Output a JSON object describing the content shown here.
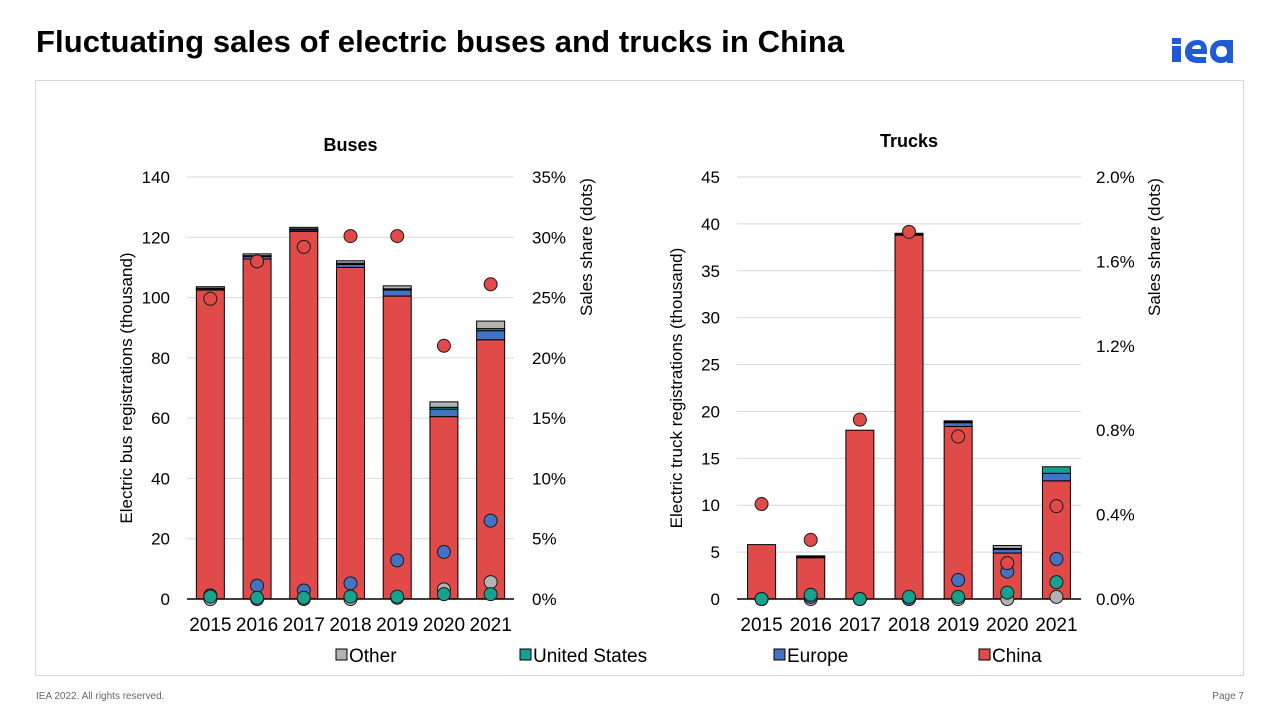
{
  "page": {
    "title": "Fluctuating sales of electric buses and trucks in China",
    "footer_left": "IEA 2022. All rights reserved.",
    "footer_right": "Page 7",
    "logo_text": "iea"
  },
  "colors": {
    "China": "#e04b4a",
    "Europe": "#4472c4",
    "United States": "#17a28f",
    "Other": "#b3b3b3",
    "logo": "#1f5bd6",
    "grid": "#d9d9d9"
  },
  "chart_data": [
    {
      "id": "buses",
      "type": "bar",
      "stacked": true,
      "title": "Buses",
      "ylabel": "Electric bus registrations (thousand)",
      "y2label": "Sales share (dots)",
      "ylim": [
        0,
        140
      ],
      "yticks": [
        0,
        20,
        40,
        60,
        80,
        100,
        120,
        140
      ],
      "y2lim": [
        0,
        0.35
      ],
      "y2ticks": [
        "0%",
        "5%",
        "10%",
        "15%",
        "20%",
        "25%",
        "30%",
        "35%"
      ],
      "categories": [
        "2015",
        "2016",
        "2017",
        "2018",
        "2019",
        "2020",
        "2021"
      ],
      "series": [
        {
          "name": "China",
          "values": [
            102.5,
            112.8,
            122.0,
            110.0,
            100.5,
            60.5,
            86.0
          ]
        },
        {
          "name": "Europe",
          "values": [
            0.4,
            0.8,
            0.5,
            1.0,
            2.0,
            2.5,
            3.0
          ]
        },
        {
          "name": "United States",
          "values": [
            0.2,
            0.3,
            0.3,
            0.4,
            0.4,
            0.6,
            0.7
          ]
        },
        {
          "name": "Other",
          "values": [
            0.5,
            0.6,
            0.5,
            0.8,
            1.0,
            1.8,
            2.5
          ]
        }
      ],
      "share_series": [
        {
          "name": "China",
          "values": [
            0.249,
            0.28,
            0.292,
            0.301,
            0.301,
            0.21,
            0.261
          ]
        },
        {
          "name": "Europe",
          "values": [
            0.003,
            0.011,
            0.007,
            0.013,
            0.032,
            0.039,
            0.065
          ]
        },
        {
          "name": "United States",
          "values": [
            0.002,
            0.001,
            0.001,
            0.002,
            0.002,
            0.004,
            0.004
          ]
        },
        {
          "name": "Other",
          "values": [
            0.0,
            0.0,
            0.0,
            0.0,
            0.001,
            0.008,
            0.014
          ]
        }
      ]
    },
    {
      "id": "trucks",
      "type": "bar",
      "stacked": true,
      "title": "Trucks",
      "ylabel": "Electric truck registrations (thousand)",
      "y2label": "Sales share (dots)",
      "ylim": [
        0,
        45
      ],
      "yticks": [
        0,
        5,
        10,
        15,
        20,
        25,
        30,
        35,
        40,
        45
      ],
      "y2lim": [
        0,
        0.02
      ],
      "y2ticks": [
        "0.0%",
        "0.4%",
        "0.8%",
        "1.2%",
        "1.6%",
        "2.0%"
      ],
      "categories": [
        "2015",
        "2016",
        "2017",
        "2018",
        "2019",
        "2020",
        "2021"
      ],
      "series": [
        {
          "name": "China",
          "values": [
            5.8,
            4.4,
            18.0,
            38.8,
            18.4,
            4.9,
            12.6
          ]
        },
        {
          "name": "Europe",
          "values": [
            0.0,
            0.1,
            0.0,
            0.1,
            0.4,
            0.4,
            0.8
          ]
        },
        {
          "name": "United States",
          "values": [
            0.0,
            0.0,
            0.0,
            0.0,
            0.1,
            0.1,
            0.7
          ]
        },
        {
          "name": "Other",
          "values": [
            0.0,
            0.1,
            0.0,
            0.1,
            0.1,
            0.3,
            0.0
          ]
        }
      ],
      "share_series": [
        {
          "name": "China",
          "values": [
            0.0045,
            0.0028,
            0.0085,
            0.0174,
            0.0077,
            0.0017,
            0.0044
          ]
        },
        {
          "name": "Europe",
          "values": [
            0.0,
            0.0001,
            0.0,
            0.0,
            0.0009,
            0.0013,
            0.0019
          ]
        },
        {
          "name": "United States",
          "values": [
            0.0,
            0.0002,
            0.0,
            0.0001,
            0.0001,
            0.0003,
            0.0008
          ]
        },
        {
          "name": "Other",
          "values": [
            0.0,
            0.0,
            0.0,
            0.0,
            0.0,
            0.0,
            0.0001
          ]
        }
      ]
    }
  ],
  "legend": [
    {
      "name": "Other",
      "label": "Other"
    },
    {
      "name": "United States",
      "label": "United States"
    },
    {
      "name": "Europe",
      "label": "Europe"
    },
    {
      "name": "China",
      "label": "China"
    }
  ]
}
